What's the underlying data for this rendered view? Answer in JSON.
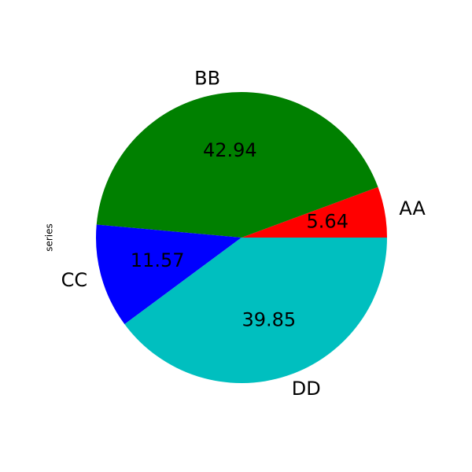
{
  "chart_data": {
    "type": "pie",
    "ylabel": "series",
    "categories": [
      "AA",
      "BB",
      "CC",
      "DD"
    ],
    "values": [
      5.64,
      42.94,
      11.57,
      39.85
    ],
    "colors": [
      "#ff0000",
      "#008000",
      "#0000ff",
      "#00bfbf"
    ]
  }
}
